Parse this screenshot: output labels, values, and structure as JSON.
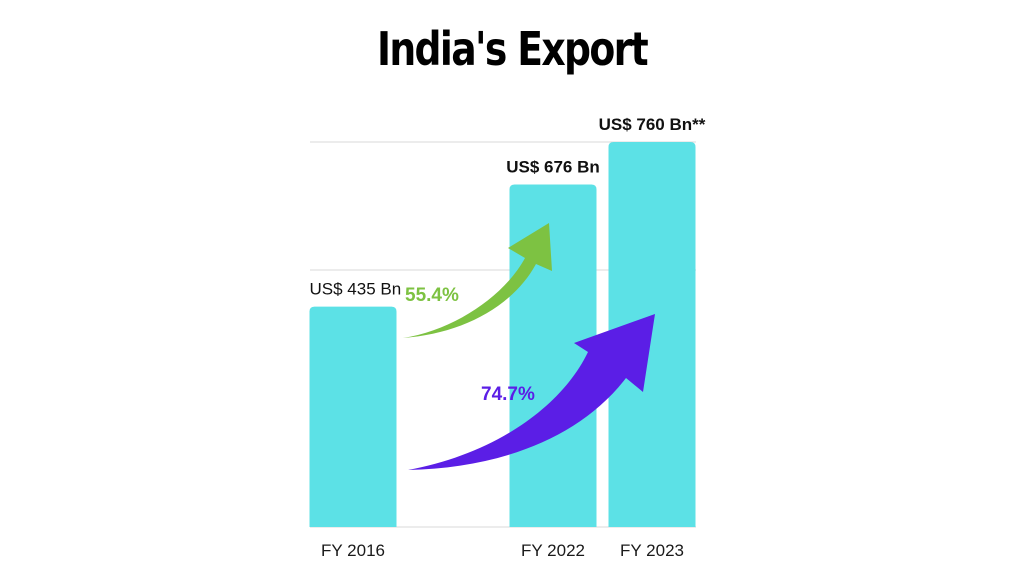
{
  "chart_data": {
    "type": "bar",
    "title": "India's Export",
    "categories": [
      "FY 2016",
      "FY 2022",
      "FY 2023"
    ],
    "x_positions": [
      2016,
      2022,
      2023
    ],
    "values": [
      435,
      676,
      760
    ],
    "value_labels": [
      "US$ 435 Bn",
      "US$ 676 Bn",
      "US$ 760 Bn**"
    ],
    "unit": "US$ Bn",
    "ylim": [
      0,
      760
    ],
    "grid": true,
    "annotations": [
      {
        "name": "growth-2016-2022",
        "text": "55.4%",
        "from": "FY 2016",
        "to": "FY 2022",
        "color": "#7dc242"
      },
      {
        "name": "growth-2016-2023",
        "text": "74.7%",
        "from": "FY 2016",
        "to": "FY 2023",
        "color": "#5b1ee6"
      }
    ],
    "colors": {
      "bar": "#5ce1e6",
      "grid": "#d9d9d9"
    }
  }
}
